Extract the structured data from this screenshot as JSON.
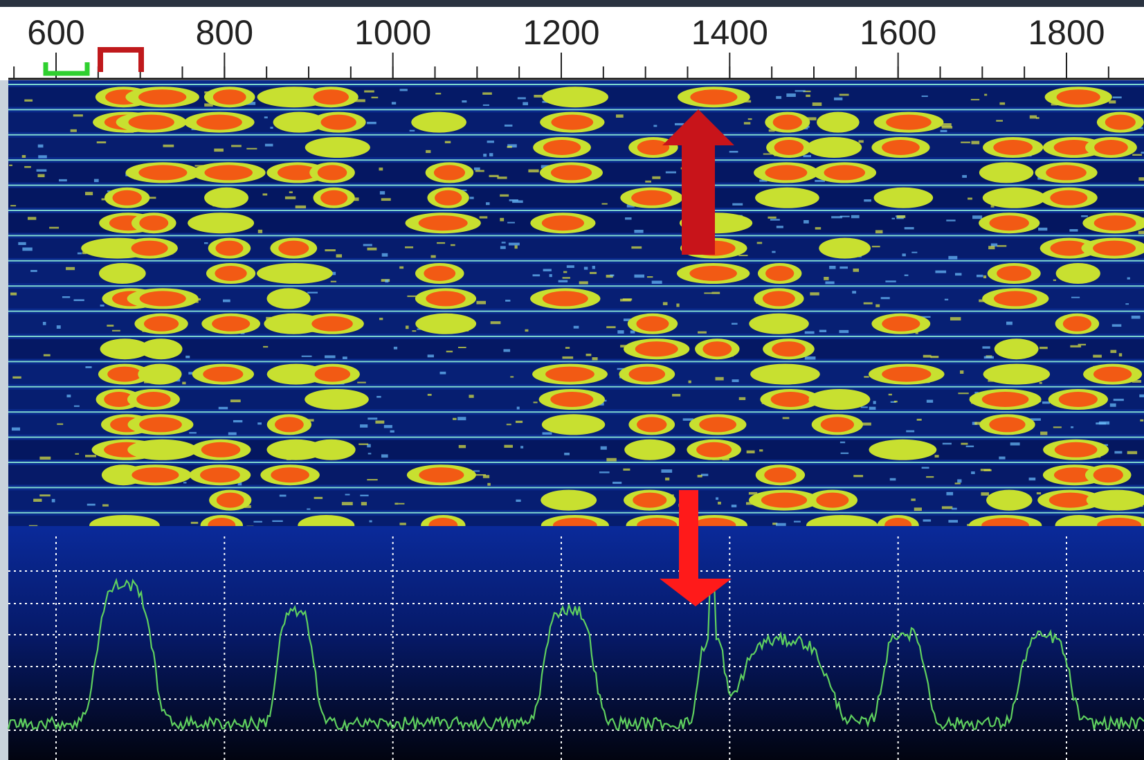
{
  "frequency_scale": {
    "labels": [
      600,
      800,
      1000,
      1200,
      1400,
      1600,
      1800
    ]
  }
}
